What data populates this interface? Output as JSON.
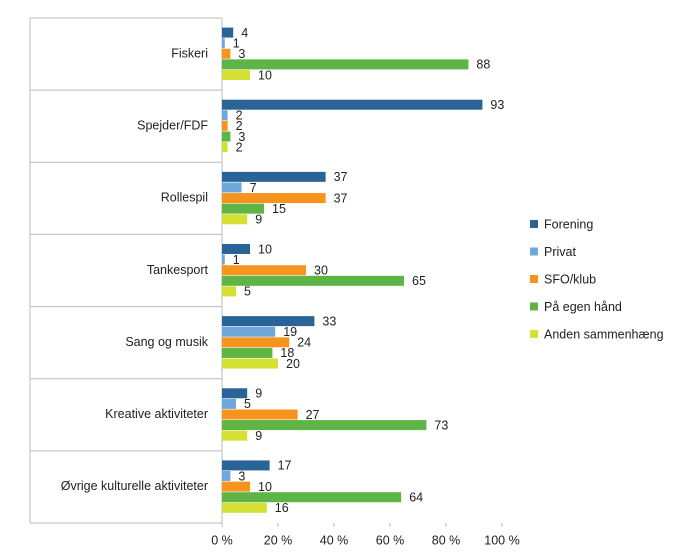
{
  "chart_data": {
    "type": "hbar",
    "categories": [
      "Fiskeri",
      "Spejder/FDF",
      "Rollespil",
      "Tankesport",
      "Sang og musik",
      "Kreative aktiviteter",
      "Øvrige kulturelle aktiviteter"
    ],
    "series": [
      {
        "name": "Forening",
        "color": "#2a6496",
        "values": [
          4,
          93,
          37,
          10,
          33,
          9,
          17
        ]
      },
      {
        "name": "Privat",
        "color": "#6fa8dc",
        "values": [
          1,
          2,
          7,
          1,
          19,
          5,
          3
        ]
      },
      {
        "name": "SFO/klub",
        "color": "#f7941d",
        "values": [
          3,
          2,
          37,
          30,
          24,
          27,
          10
        ]
      },
      {
        "name": "På egen hånd",
        "color": "#5eb445",
        "values": [
          88,
          3,
          15,
          65,
          18,
          73,
          64
        ]
      },
      {
        "name": "Anden sammenhæng",
        "color": "#d4e032",
        "values": [
          10,
          2,
          9,
          5,
          20,
          9,
          16
        ]
      }
    ],
    "xlim": [
      0,
      100
    ],
    "xticks": [
      {
        "value": 0,
        "label": "0 %"
      },
      {
        "value": 20,
        "label": "20 %"
      },
      {
        "value": 40,
        "label": "40 %"
      },
      {
        "value": 60,
        "label": "60 %"
      },
      {
        "value": 80,
        "label": "80 %"
      },
      {
        "value": 100,
        "label": "100 %"
      }
    ],
    "legend": "right"
  }
}
